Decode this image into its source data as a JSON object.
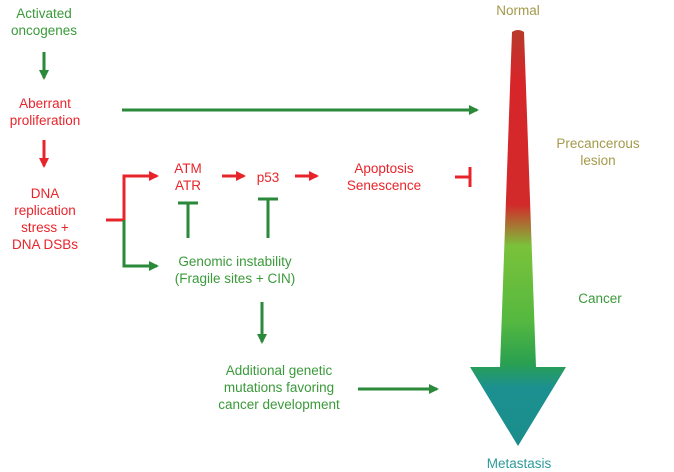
{
  "colors": {
    "green": "#3a9a3a",
    "red": "#e8242b",
    "olive": "#a39a4a",
    "teal": "#2f9a9a",
    "arrow_green": "#2a8a3a",
    "arrow_red": "#e8242b"
  },
  "left_chain": {
    "activated_oncogenes": "Activated\noncogenes",
    "aberrant_proliferation": "Aberrant\nproliferation",
    "dna_stress": "DNA\nreplication\nstress +\nDNA DSBs"
  },
  "pathway": {
    "atm_atr": "ATM\nATR",
    "p53": "p53",
    "apoptosis_senescence": "Apoptosis\nSenescence",
    "genomic_instability": "Genomic instability\n(Fragile sites + CIN)",
    "additional_mutations": "Additional genetic\nmutations favoring\ncancer development"
  },
  "progression": {
    "normal": "Normal",
    "precancerous": "Precancerous\nlesion",
    "cancer": "Cancer",
    "metastasis": "Metastasis"
  }
}
